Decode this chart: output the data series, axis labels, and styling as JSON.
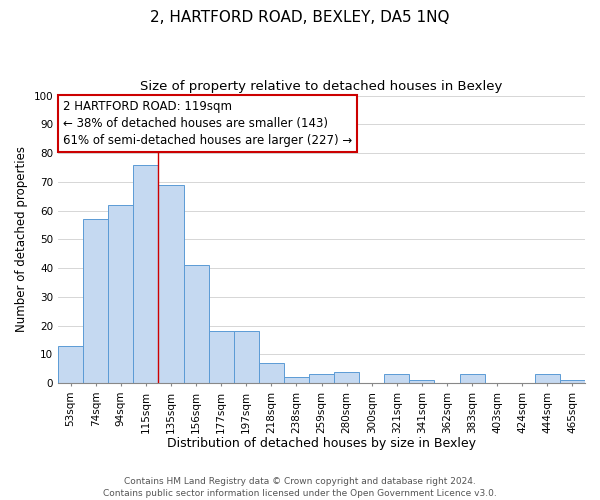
{
  "title": "2, HARTFORD ROAD, BEXLEY, DA5 1NQ",
  "subtitle": "Size of property relative to detached houses in Bexley",
  "xlabel": "Distribution of detached houses by size in Bexley",
  "ylabel": "Number of detached properties",
  "bar_labels": [
    "53sqm",
    "74sqm",
    "94sqm",
    "115sqm",
    "135sqm",
    "156sqm",
    "177sqm",
    "197sqm",
    "218sqm",
    "238sqm",
    "259sqm",
    "280sqm",
    "300sqm",
    "321sqm",
    "341sqm",
    "362sqm",
    "383sqm",
    "403sqm",
    "424sqm",
    "444sqm",
    "465sqm"
  ],
  "bar_values": [
    13,
    57,
    62,
    76,
    69,
    41,
    18,
    18,
    7,
    2,
    3,
    4,
    0,
    3,
    1,
    0,
    3,
    0,
    0,
    3,
    1
  ],
  "bar_color": "#c5d9f1",
  "bar_edge_color": "#5b9bd5",
  "grid_color": "#d0d0d0",
  "vline_x_index": 3,
  "vline_color": "#cc0000",
  "annotation_line1": "2 HARTFORD ROAD: 119sqm",
  "annotation_line2": "← 38% of detached houses are smaller (143)",
  "annotation_line3": "61% of semi-detached houses are larger (227) →",
  "footnote": "Contains HM Land Registry data © Crown copyright and database right 2024.\nContains public sector information licensed under the Open Government Licence v3.0.",
  "ylim": [
    0,
    100
  ],
  "title_fontsize": 11,
  "subtitle_fontsize": 9.5,
  "xlabel_fontsize": 9,
  "ylabel_fontsize": 8.5,
  "tick_fontsize": 7.5,
  "annotation_fontsize": 8.5,
  "footnote_fontsize": 6.5,
  "background_color": "#ffffff"
}
